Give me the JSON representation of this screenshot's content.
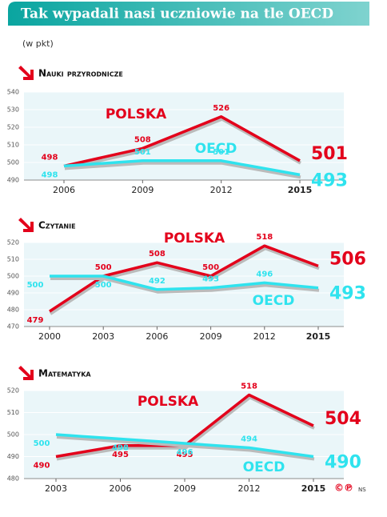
{
  "header": {
    "title": "Tak wypadali nasi uczniowie na tle OECD",
    "subtitle": "(w pkt)"
  },
  "chart_data": [
    {
      "type": "line",
      "title": "Nauki przyrodnicze",
      "categories": [
        "2006",
        "2009",
        "2012",
        "2015"
      ],
      "series": [
        {
          "name": "POLSKA",
          "color": "#e3001b",
          "values": [
            498,
            508,
            526,
            501
          ]
        },
        {
          "name": "OECD",
          "color": "#2fe3ee",
          "values": [
            498,
            501,
            501,
            493
          ]
        }
      ],
      "ylim": [
        490,
        540
      ],
      "yticks": [
        490,
        500,
        510,
        520,
        530,
        540
      ],
      "grid": true
    },
    {
      "type": "line",
      "title": "Czytanie",
      "categories": [
        "2000",
        "2003",
        "2006",
        "2009",
        "2012",
        "2015"
      ],
      "series": [
        {
          "name": "POLSKA",
          "color": "#e3001b",
          "values": [
            479,
            500,
            508,
            500,
            518,
            506
          ]
        },
        {
          "name": "OECD",
          "color": "#2fe3ee",
          "values": [
            500,
            500,
            492,
            493,
            496,
            493
          ]
        }
      ],
      "ylim": [
        470,
        520
      ],
      "yticks": [
        470,
        480,
        490,
        500,
        510,
        520
      ],
      "grid": true
    },
    {
      "type": "line",
      "title": "Matematyka",
      "categories": [
        "2003",
        "2006",
        "2009",
        "2012",
        "2015"
      ],
      "series": [
        {
          "name": "POLSKA",
          "color": "#e3001b",
          "values": [
            490,
            495,
            495,
            518,
            504
          ]
        },
        {
          "name": "OECD",
          "color": "#2fe3ee",
          "values": [
            500,
            498,
            496,
            494,
            490
          ]
        }
      ],
      "ylim": [
        480,
        520
      ],
      "yticks": [
        480,
        490,
        500,
        510,
        520
      ],
      "grid": true
    }
  ],
  "footer": {
    "logo": "©℗",
    "credit": "NS"
  }
}
